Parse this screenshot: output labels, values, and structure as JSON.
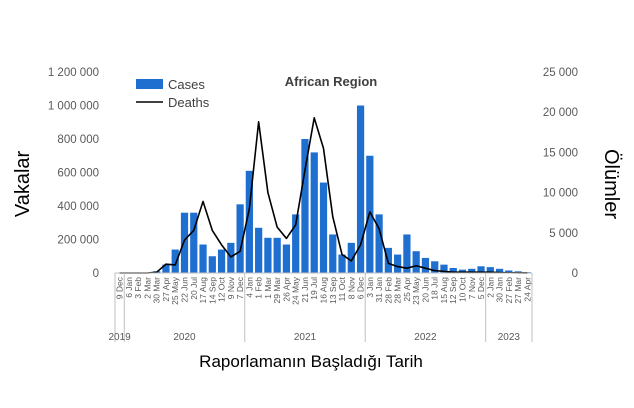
{
  "chart_data": {
    "type": "bar+line",
    "title": "African Region",
    "xlabel": "Raporlamanın Başladığı Tarih",
    "ylabel_left": "Vakalar",
    "ylabel_right": "Ölümler",
    "ylim_left": [
      0,
      1200000
    ],
    "ylim_right": [
      0,
      25000
    ],
    "yticks_left": [
      "0",
      "200 000",
      "400 000",
      "600 000",
      "800 000",
      "1 000 000",
      "1 200 000"
    ],
    "yticks_right": [
      "0",
      "5 000",
      "10 000",
      "15 000",
      "20 000",
      "25 000"
    ],
    "legend": {
      "position": "top-left",
      "entries": [
        "Cases",
        "Deaths"
      ]
    },
    "colors": {
      "cases": "#1f6fd1",
      "deaths": "#000000",
      "axis": "#bfbfbf",
      "text": "#595959"
    },
    "categories": [
      "9 Dec",
      "6 Jan",
      "3 Feb",
      "2 Mar",
      "30 Mar",
      "27 Apr",
      "25 May",
      "22 Jun",
      "20 Jul",
      "17 Aug",
      "14 Sep",
      "12 Oct",
      "9 Nov",
      "7 Dec",
      "4 Jan",
      "1 Feb",
      "1 Mar",
      "29 Mar",
      "26 Apr",
      "24 May",
      "21 Jun",
      "19 Jul",
      "16 Aug",
      "13 Sep",
      "11 Oct",
      "8 Nov",
      "6 Dec",
      "3 Jan",
      "31 Jan",
      "28 Feb",
      "28 Mar",
      "25 Apr",
      "23 May",
      "20 Jun",
      "18 Jul",
      "15 Aug",
      "12 Sep",
      "10 Oct",
      "7 Nov",
      "5 Dec",
      "2 Jan",
      "30 Jan",
      "27 Feb",
      "27 Mar",
      "24 Apr"
    ],
    "years": [
      {
        "label": "2019",
        "start": 0,
        "end": 1
      },
      {
        "label": "2020",
        "start": 1,
        "end": 14
      },
      {
        "label": "2021",
        "start": 14,
        "end": 27
      },
      {
        "label": "2022",
        "start": 27,
        "end": 40
      },
      {
        "label": "2023",
        "start": 40,
        "end": 45
      }
    ],
    "series": [
      {
        "name": "Cases",
        "axis": "left",
        "type": "bar",
        "values": [
          0,
          0,
          0,
          0,
          10000,
          50000,
          140000,
          360000,
          360000,
          170000,
          100000,
          140000,
          180000,
          410000,
          610000,
          270000,
          210000,
          210000,
          170000,
          350000,
          800000,
          720000,
          540000,
          230000,
          110000,
          180000,
          1000000,
          700000,
          350000,
          150000,
          110000,
          230000,
          130000,
          90000,
          70000,
          50000,
          30000,
          20000,
          25000,
          40000,
          35000,
          25000,
          15000,
          10000,
          5000
        ]
      },
      {
        "name": "Deaths",
        "axis": "right",
        "type": "line",
        "values": [
          0,
          0,
          0,
          0,
          100,
          1100,
          1000,
          4100,
          5300,
          8900,
          5300,
          3500,
          2000,
          2700,
          8000,
          18800,
          10000,
          5700,
          4300,
          6000,
          12800,
          19300,
          15500,
          7000,
          2300,
          1500,
          3500,
          7600,
          5500,
          1200,
          800,
          600,
          900,
          600,
          300,
          200,
          100,
          100,
          100,
          100,
          100,
          50,
          30,
          20,
          10
        ]
      }
    ]
  }
}
